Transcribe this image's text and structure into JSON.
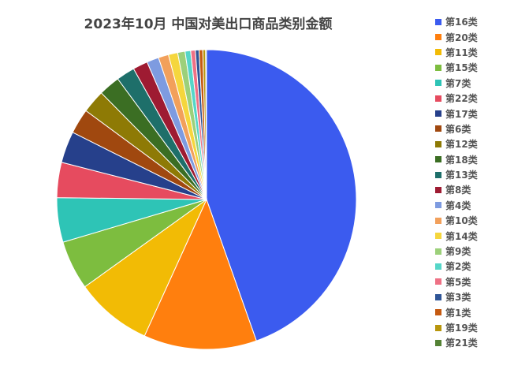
{
  "chart_data": {
    "type": "pie",
    "title": "2023年10月 中国对美出口商品类别金额",
    "legend_position": "right",
    "start_angle_deg": 0,
    "direction": "clockwise",
    "slices": [
      {
        "label": "第16类",
        "value": 44.6,
        "color": "#3B5BEF"
      },
      {
        "label": "第20类",
        "value": 12.2,
        "color": "#FF7F0E"
      },
      {
        "label": "第11类",
        "value": 8.3,
        "color": "#F2BB05"
      },
      {
        "label": "第15类",
        "value": 5.3,
        "color": "#7DBD3F"
      },
      {
        "label": "第7类",
        "value": 4.8,
        "color": "#2EC4B6"
      },
      {
        "label": "第22类",
        "value": 3.8,
        "color": "#E64B5F"
      },
      {
        "label": "第17类",
        "value": 3.4,
        "color": "#26408B"
      },
      {
        "label": "第6类",
        "value": 2.7,
        "color": "#A0480F"
      },
      {
        "label": "第12类",
        "value": 2.5,
        "color": "#8E7A05"
      },
      {
        "label": "第18类",
        "value": 2.3,
        "color": "#3B6E23"
      },
      {
        "label": "第13类",
        "value": 2.0,
        "color": "#1E6F6A"
      },
      {
        "label": "第8类",
        "value": 1.6,
        "color": "#9E1B32"
      },
      {
        "label": "第4类",
        "value": 1.3,
        "color": "#7E9BE0"
      },
      {
        "label": "第10类",
        "value": 1.1,
        "color": "#F2A05B"
      },
      {
        "label": "第14类",
        "value": 1.0,
        "color": "#F5D63D"
      },
      {
        "label": "第9类",
        "value": 0.8,
        "color": "#9CD07A"
      },
      {
        "label": "第2类",
        "value": 0.6,
        "color": "#55D6C8"
      },
      {
        "label": "第5类",
        "value": 0.5,
        "color": "#EE7185"
      },
      {
        "label": "第3类",
        "value": 0.4,
        "color": "#2F5597"
      },
      {
        "label": "第1类",
        "value": 0.4,
        "color": "#C55A11"
      },
      {
        "label": "第19类",
        "value": 0.3,
        "color": "#B8960C"
      },
      {
        "label": "第21类",
        "value": 0.1,
        "color": "#548235"
      }
    ]
  }
}
